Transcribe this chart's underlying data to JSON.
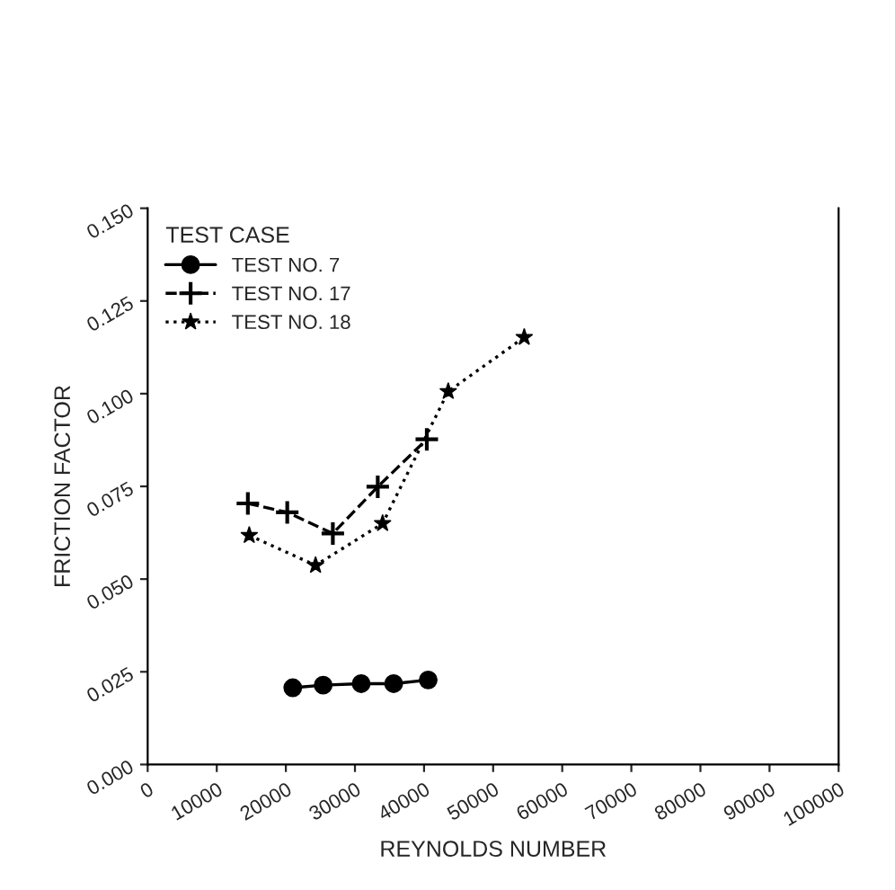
{
  "chart_data": {
    "type": "line",
    "legend_title": "TEST CASE",
    "xlabel": "REYNOLDS NUMBER",
    "ylabel": "FRICTION FACTOR",
    "xlim": [
      0,
      100000
    ],
    "xticks": [
      0,
      10000,
      20000,
      30000,
      40000,
      50000,
      60000,
      70000,
      80000,
      90000,
      100000
    ],
    "ylim": [
      0,
      0.15
    ],
    "yticks": [
      {
        "value": 0,
        "label": "0.000"
      },
      {
        "value": 0.025,
        "label": "0.025"
      },
      {
        "value": 0.05,
        "label": "0.050"
      },
      {
        "value": 0.075,
        "label": "0.075"
      },
      {
        "value": 0.1,
        "label": "0.100"
      },
      {
        "value": 0.125,
        "label": "0.125"
      },
      {
        "value": 0.15,
        "label": "0.150"
      }
    ],
    "grid": false,
    "legend": "top left",
    "series": [
      {
        "name": "TEST NO. 7",
        "color": "#000000",
        "marker": "circle",
        "line_style": "solid",
        "x": [
          21000,
          25400,
          30900,
          35600,
          40600
        ],
        "values": [
          0.0207,
          0.0214,
          0.0218,
          0.0218,
          0.0228
        ]
      },
      {
        "name": "TEST NO. 17",
        "color": "#000000",
        "marker": "cross",
        "line_style": "dashed",
        "x": [
          14500,
          20200,
          26800,
          33300,
          40400
        ],
        "values": [
          0.0704,
          0.068,
          0.0623,
          0.0749,
          0.0877
        ]
      },
      {
        "name": "TEST NO. 18",
        "color": "#000000",
        "marker": "star",
        "line_style": "dotted",
        "x": [
          14700,
          24300,
          34000,
          43500,
          54500
        ],
        "values": [
          0.0618,
          0.0537,
          0.065,
          0.1006,
          0.1152
        ]
      }
    ]
  }
}
